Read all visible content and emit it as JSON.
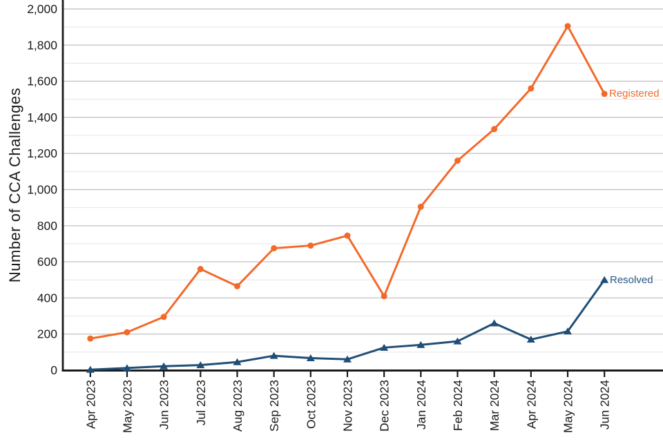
{
  "chart_data": {
    "type": "line",
    "title": "",
    "xlabel": "",
    "ylabel": "Number of CCA Challenges",
    "ylim": [
      0,
      2000
    ],
    "ytick_step": 200,
    "minor_gridline_step": 100,
    "grid": "horizontal",
    "legend_position": "inline-end-of-line",
    "yticks": [
      "0",
      "200",
      "400",
      "600",
      "800",
      "1,000",
      "1,200",
      "1,400",
      "1,600",
      "1,800",
      "2,000"
    ],
    "categories": [
      "Apr 2023",
      "May 2023",
      "Jun 2023",
      "Jul 2023",
      "Aug 2023",
      "Sep 2023",
      "Oct 2023",
      "Nov 2023",
      "Dec 2023",
      "Jan 2024",
      "Feb 2024",
      "Mar 2024",
      "Apr 2024",
      "May 2024",
      "Jun 2024"
    ],
    "series": [
      {
        "name": "Registered",
        "marker": "circle",
        "color": "#F26A2A",
        "label_color": "#F26A2A",
        "values": [
          175,
          210,
          295,
          560,
          465,
          675,
          690,
          745,
          410,
          905,
          1160,
          1335,
          1560,
          1905,
          1530
        ]
      },
      {
        "name": "Resolved",
        "marker": "triangle",
        "color": "#204E77",
        "label_color": "#2B5A87",
        "values": [
          3,
          12,
          22,
          28,
          45,
          80,
          67,
          60,
          125,
          140,
          160,
          260,
          170,
          215,
          500
        ]
      }
    ],
    "colors": {
      "axis": "#1a1a1a",
      "tick_label": "#1a1a1a",
      "major_gridline": "#c6c6c6",
      "minor_gridline": "#e4e4e4",
      "background": "#ffffff"
    }
  }
}
